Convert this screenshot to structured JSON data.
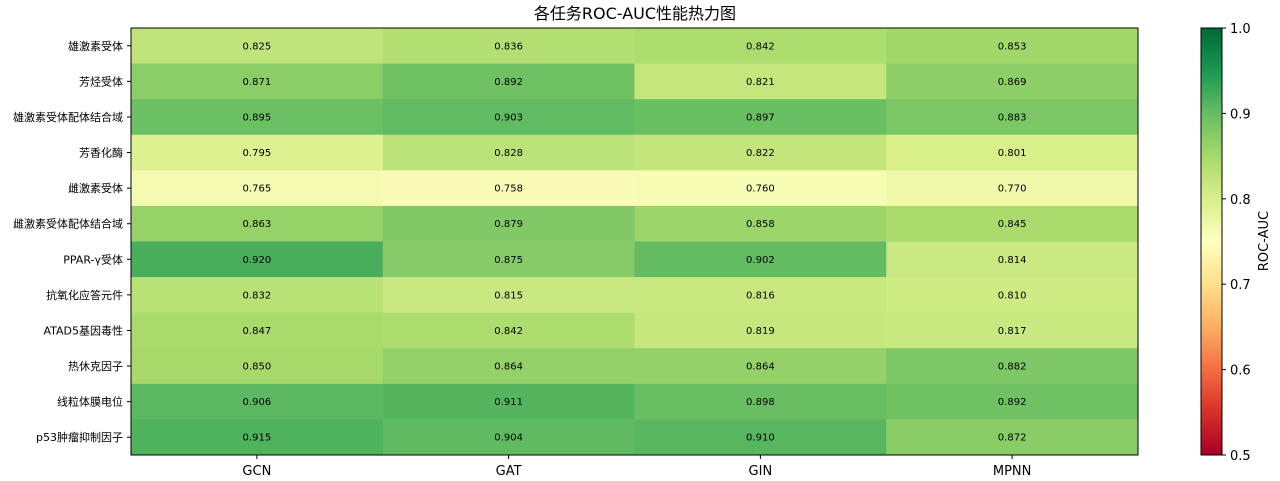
{
  "chart_data": {
    "type": "heatmap",
    "title": "各任务ROC-AUC性能热力图",
    "xlabel": "",
    "ylabel": "",
    "x_categories": [
      "GCN",
      "GAT",
      "GIN",
      "MPNN"
    ],
    "y_categories": [
      "雄激素受体",
      "芳烃受体",
      "雄激素受体配体结合域",
      "芳香化酶",
      "雌激素受体",
      "雌激素受体配体结合域",
      "PPAR-γ受体",
      "抗氧化应答元件",
      "ATAD5基因毒性",
      "热休克因子",
      "线粒体膜电位",
      "p53肿瘤抑制因子"
    ],
    "values": [
      [
        0.825,
        0.836,
        0.842,
        0.853
      ],
      [
        0.871,
        0.892,
        0.821,
        0.869
      ],
      [
        0.895,
        0.903,
        0.897,
        0.883
      ],
      [
        0.795,
        0.828,
        0.822,
        0.801
      ],
      [
        0.765,
        0.758,
        0.76,
        0.77
      ],
      [
        0.863,
        0.879,
        0.858,
        0.845
      ],
      [
        0.92,
        0.875,
        0.902,
        0.814
      ],
      [
        0.832,
        0.815,
        0.816,
        0.81
      ],
      [
        0.847,
        0.842,
        0.819,
        0.817
      ],
      [
        0.85,
        0.864,
        0.864,
        0.882
      ],
      [
        0.906,
        0.911,
        0.898,
        0.892
      ],
      [
        0.915,
        0.904,
        0.91,
        0.872
      ]
    ],
    "colorbar": {
      "label": "ROC-AUC",
      "range": [
        0.5,
        1.0
      ],
      "ticks": [
        "0.5",
        "0.6",
        "0.7",
        "0.8",
        "0.9",
        "1.0"
      ],
      "colormap": "RdYlGn"
    }
  }
}
